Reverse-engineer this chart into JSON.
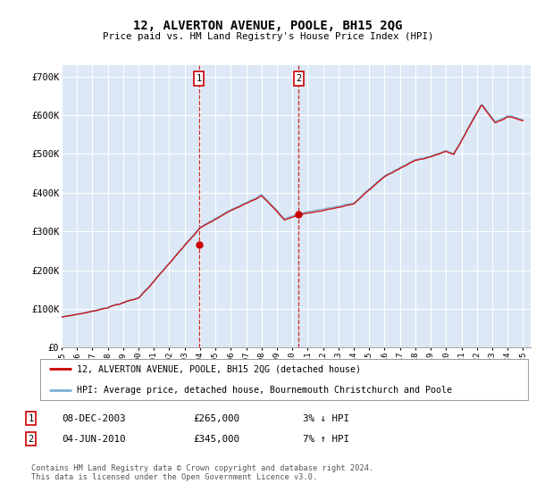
{
  "title": "12, ALVERTON AVENUE, POOLE, BH15 2QG",
  "subtitle": "Price paid vs. HM Land Registry's House Price Index (HPI)",
  "ylabel_ticks": [
    "£0",
    "£100K",
    "£200K",
    "£300K",
    "£400K",
    "£500K",
    "£600K",
    "£700K"
  ],
  "ytick_values": [
    0,
    100000,
    200000,
    300000,
    400000,
    500000,
    600000,
    700000
  ],
  "ylim": [
    0,
    730000
  ],
  "xlim_start": 1995.0,
  "xlim_end": 2025.5,
  "line1_color": "#cc0000",
  "line2_color": "#7ab0d4",
  "sale1_x": 2003.92,
  "sale1_y": 265000,
  "sale2_x": 2010.42,
  "sale2_y": 345000,
  "legend_line1": "12, ALVERTON AVENUE, POOLE, BH15 2QG (detached house)",
  "legend_line2": "HPI: Average price, detached house, Bournemouth Christchurch and Poole",
  "table_row1": [
    "1",
    "08-DEC-2003",
    "£265,000",
    "3% ↓ HPI"
  ],
  "table_row2": [
    "2",
    "04-JUN-2010",
    "£345,000",
    "7% ↑ HPI"
  ],
  "footnote": "Contains HM Land Registry data © Crown copyright and database right 2024.\nThis data is licensed under the Open Government Licence v3.0.",
  "bg_color": "#ffffff",
  "plot_bg_color": "#dce8f5",
  "grid_color": "#ffffff"
}
